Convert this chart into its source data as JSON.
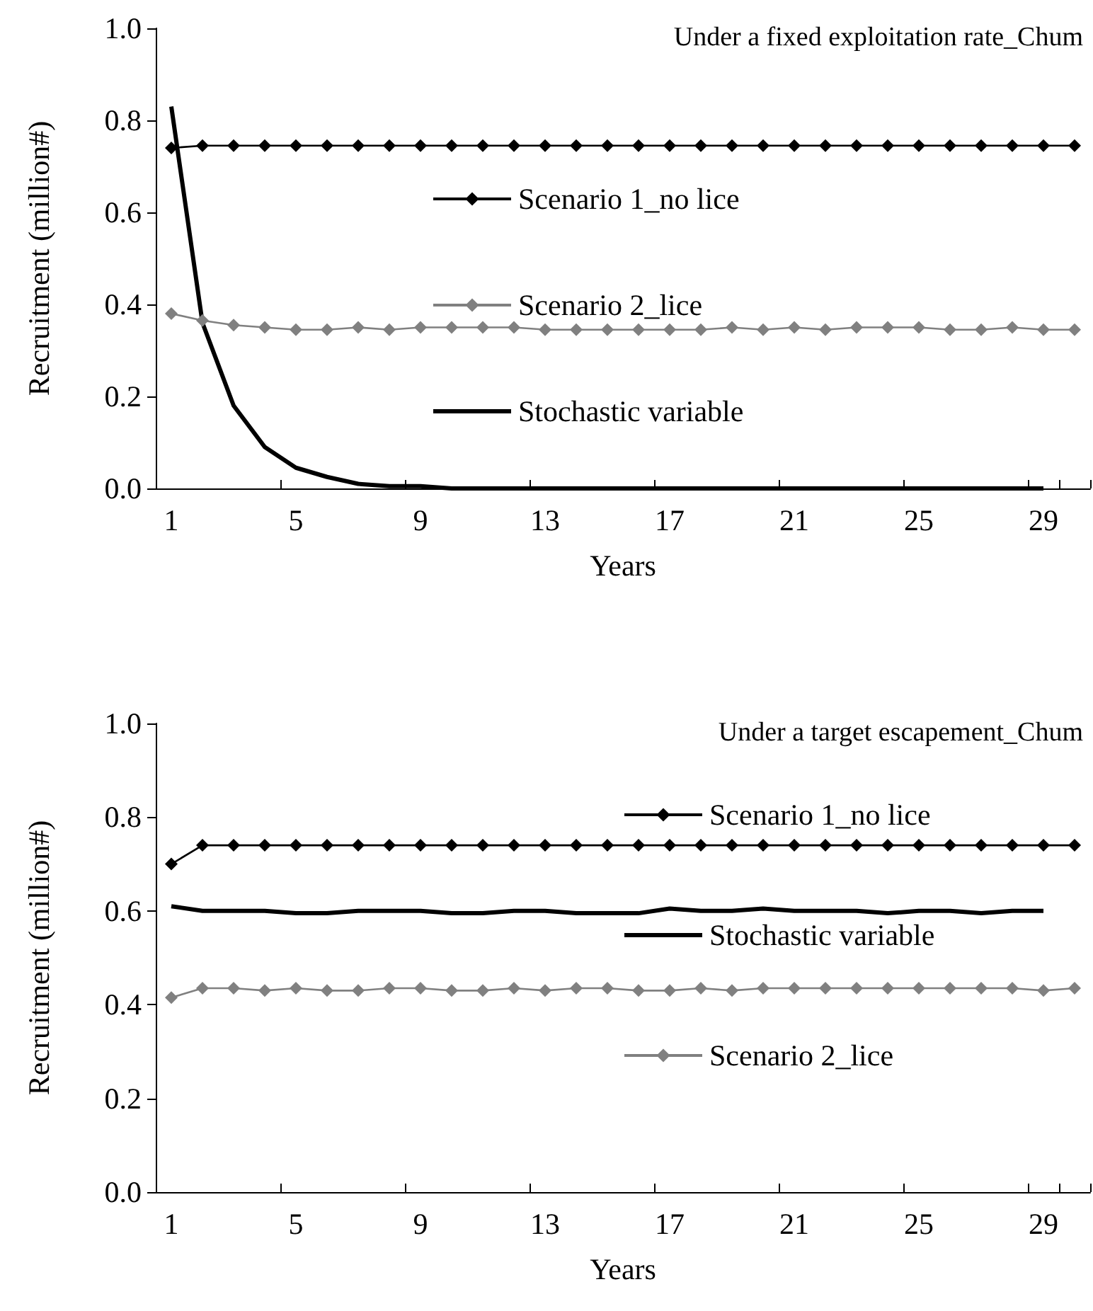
{
  "chart_data": [
    {
      "type": "line",
      "title": "Under a fixed exploitation rate_Chum",
      "xlabel": "Years",
      "ylabel": "Recruitment (million#)",
      "categories": [
        "1",
        null,
        null,
        null,
        "5",
        null,
        null,
        null,
        "9",
        null,
        null,
        null,
        "13",
        null,
        null,
        null,
        "17",
        null,
        null,
        null,
        "21",
        null,
        null,
        null,
        "25",
        null,
        null,
        null,
        "29",
        null
      ],
      "ylim": [
        0,
        1
      ],
      "yticks": [
        {
          "value": 0,
          "label": "0.0"
        },
        {
          "value": 0.2,
          "label": "0.2"
        },
        {
          "value": 0.4,
          "label": "0.4"
        },
        {
          "value": 0.6,
          "label": "0.6"
        },
        {
          "value": 0.8,
          "label": "0.8"
        },
        {
          "value": 1,
          "label": "1.0"
        }
      ],
      "grid": false,
      "legend": "center",
      "series": [
        {
          "name": "Scenario 1_no lice",
          "color": "#000000",
          "marker": "diamond",
          "values": [
            0.74,
            0.745,
            0.745,
            0.745,
            0.745,
            0.745,
            0.745,
            0.745,
            0.745,
            0.745,
            0.745,
            0.745,
            0.745,
            0.745,
            0.745,
            0.745,
            0.745,
            0.745,
            0.745,
            0.745,
            0.745,
            0.745,
            0.745,
            0.745,
            0.745,
            0.745,
            0.745,
            0.745,
            0.745,
            0.745
          ]
        },
        {
          "name": "Scenario 2_lice",
          "color": "#808080",
          "marker": "diamond",
          "values": [
            0.38,
            0.365,
            0.355,
            0.35,
            0.345,
            0.345,
            0.35,
            0.345,
            0.35,
            0.35,
            0.35,
            0.35,
            0.345,
            0.345,
            0.345,
            0.345,
            0.345,
            0.345,
            0.35,
            0.345,
            0.35,
            0.345,
            0.35,
            0.35,
            0.35,
            0.345,
            0.345,
            0.35,
            0.345,
            0.345
          ]
        },
        {
          "name": "Stochastic variable",
          "color": "#000000",
          "marker": "none",
          "values": [
            0.83,
            0.36,
            0.18,
            0.09,
            0.045,
            0.025,
            0.01,
            0.005,
            0.005,
            0,
            0,
            0,
            0,
            0,
            0,
            0,
            0,
            0,
            0,
            0,
            0,
            0,
            0,
            0,
            0,
            0,
            0,
            0,
            0,
            null
          ]
        }
      ]
    },
    {
      "type": "line",
      "title": "Under a target escapement_Chum",
      "xlabel": "Years",
      "ylabel": "Recruitment (million#)",
      "categories": [
        "1",
        null,
        null,
        null,
        "5",
        null,
        null,
        null,
        "9",
        null,
        null,
        null,
        "13",
        null,
        null,
        null,
        "17",
        null,
        null,
        null,
        "21",
        null,
        null,
        null,
        "25",
        null,
        null,
        null,
        "29",
        null
      ],
      "ylim": [
        0,
        1
      ],
      "yticks": [
        {
          "value": 0,
          "label": "0.0"
        },
        {
          "value": 0.2,
          "label": "0.2"
        },
        {
          "value": 0.4,
          "label": "0.4"
        },
        {
          "value": 0.6,
          "label": "0.6"
        },
        {
          "value": 0.8,
          "label": "0.8"
        },
        {
          "value": 1,
          "label": "1.0"
        }
      ],
      "grid": false,
      "legend": "center",
      "series": [
        {
          "name": "Scenario 1_no lice",
          "color": "#000000",
          "marker": "diamond",
          "values": [
            0.7,
            0.74,
            0.74,
            0.74,
            0.74,
            0.74,
            0.74,
            0.74,
            0.74,
            0.74,
            0.74,
            0.74,
            0.74,
            0.74,
            0.74,
            0.74,
            0.74,
            0.74,
            0.74,
            0.74,
            0.74,
            0.74,
            0.74,
            0.74,
            0.74,
            0.74,
            0.74,
            0.74,
            0.74,
            0.74
          ]
        },
        {
          "name": "Stochastic variable",
          "color": "#000000",
          "marker": "none",
          "values": [
            0.61,
            0.6,
            0.6,
            0.6,
            0.595,
            0.595,
            0.6,
            0.6,
            0.6,
            0.595,
            0.595,
            0.6,
            0.6,
            0.595,
            0.595,
            0.595,
            0.605,
            0.6,
            0.6,
            0.605,
            0.6,
            0.6,
            0.6,
            0.595,
            0.6,
            0.6,
            0.595,
            0.6,
            0.6,
            null
          ]
        },
        {
          "name": "Scenario 2_lice",
          "color": "#808080",
          "marker": "diamond",
          "values": [
            0.415,
            0.435,
            0.435,
            0.43,
            0.435,
            0.43,
            0.43,
            0.435,
            0.435,
            0.43,
            0.43,
            0.435,
            0.43,
            0.435,
            0.435,
            0.43,
            0.43,
            0.435,
            0.43,
            0.435,
            0.435,
            0.435,
            0.435,
            0.435,
            0.435,
            0.435,
            0.435,
            0.435,
            0.43,
            0.435
          ]
        }
      ]
    }
  ]
}
